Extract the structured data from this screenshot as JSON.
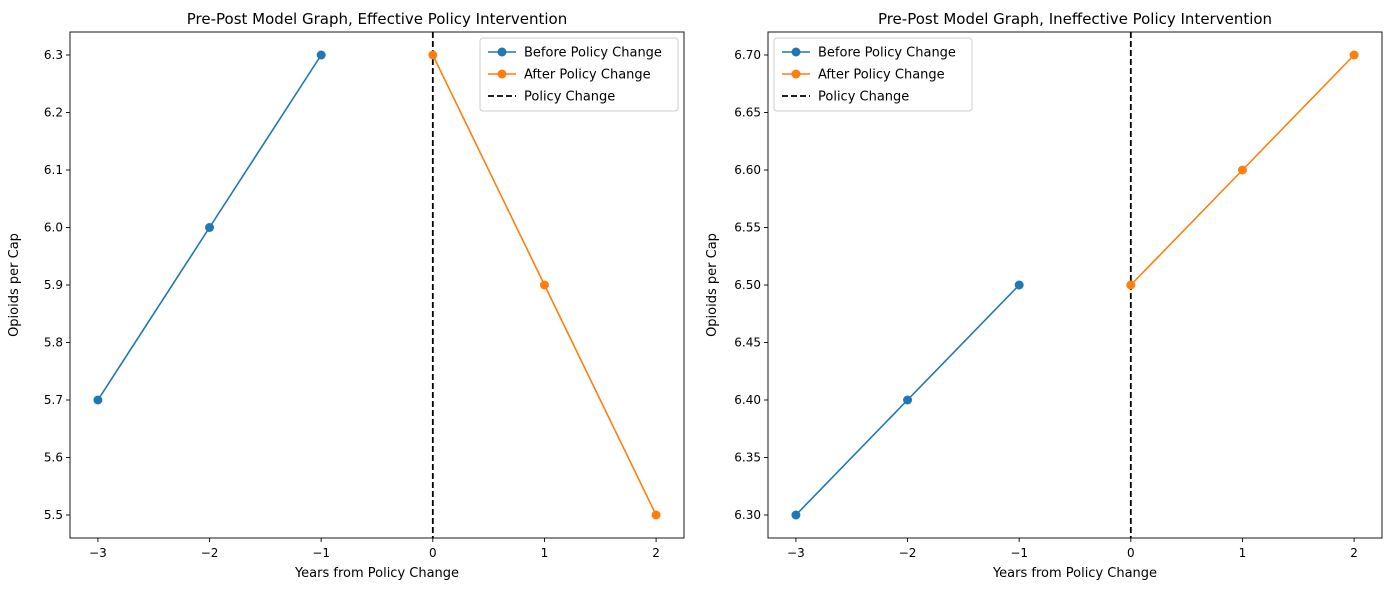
{
  "chart_data": [
    {
      "type": "line",
      "title": "Pre-Post Model Graph, Effective Policy Intervention",
      "xlabel": "Years from Policy Change",
      "ylabel": "Opioids per Cap",
      "xlim": [
        -3.25,
        2.25
      ],
      "ylim": [
        5.46,
        6.34
      ],
      "xticks": [
        -3,
        -2,
        -1,
        0,
        1,
        2
      ],
      "yticks": [
        5.5,
        5.6,
        5.7,
        5.8,
        5.9,
        6.0,
        6.1,
        6.2,
        6.3
      ],
      "ytick_decimals": 1,
      "grid": false,
      "legend": "top-right",
      "series": [
        {
          "name": "Before Policy Change",
          "color": "#1f77b4",
          "x": [
            -3,
            -2,
            -1
          ],
          "y": [
            5.7,
            6.0,
            6.3
          ]
        },
        {
          "name": "After Policy Change",
          "color": "#ff7f0e",
          "x": [
            0,
            1,
            2
          ],
          "y": [
            6.3,
            5.9,
            5.5
          ]
        }
      ],
      "vline": {
        "name": "Policy Change",
        "x": 0,
        "color": "#000000",
        "style": "dashed"
      }
    },
    {
      "type": "line",
      "title": "Pre-Post Model Graph, Ineffective Policy Intervention",
      "xlabel": "Years from Policy Change",
      "ylabel": "Opioids per Cap",
      "xlim": [
        -3.25,
        2.25
      ],
      "ylim": [
        6.28,
        6.72
      ],
      "xticks": [
        -3,
        -2,
        -1,
        0,
        1,
        2
      ],
      "yticks": [
        6.3,
        6.35,
        6.4,
        6.45,
        6.5,
        6.55,
        6.6,
        6.65,
        6.7
      ],
      "ytick_decimals": 2,
      "grid": false,
      "legend": "top-left",
      "series": [
        {
          "name": "Before Policy Change",
          "color": "#1f77b4",
          "x": [
            -3,
            -2,
            -1
          ],
          "y": [
            6.3,
            6.4,
            6.5
          ]
        },
        {
          "name": "After Policy Change",
          "color": "#ff7f0e",
          "x": [
            0,
            1,
            2
          ],
          "y": [
            6.5,
            6.6,
            6.7
          ]
        }
      ],
      "vline": {
        "name": "Policy Change",
        "x": 0,
        "color": "#000000",
        "style": "dashed"
      }
    }
  ]
}
